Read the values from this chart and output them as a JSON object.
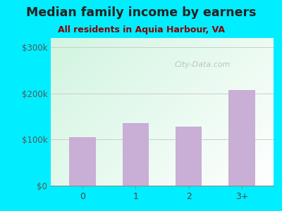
{
  "title": "Median family income by earners",
  "subtitle": "All residents in Aquia Harbour, VA",
  "categories": [
    "0",
    "1",
    "2",
    "3+"
  ],
  "values": [
    105000,
    135000,
    128000,
    207000
  ],
  "bar_color": "#c9aed6",
  "title_fontsize": 12.5,
  "subtitle_fontsize": 9,
  "title_color": "#222222",
  "subtitle_color": "#8B0000",
  "ytick_labels": [
    "$0",
    "$100k",
    "$200k",
    "$300k"
  ],
  "ytick_values": [
    0,
    100000,
    200000,
    300000
  ],
  "ylim": [
    0,
    320000
  ],
  "background_outer": "#00eeff",
  "watermark": "City-Data.com"
}
